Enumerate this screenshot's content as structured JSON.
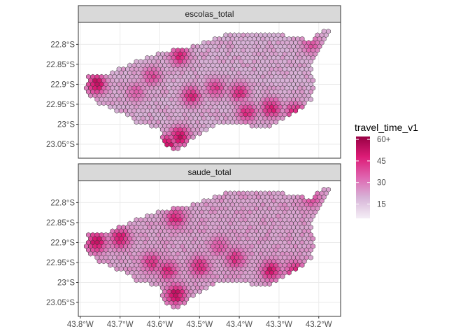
{
  "chart_data": {
    "type": "heatmap",
    "facets": [
      {
        "strip": "escolas_total",
        "region_outline_lonlat": [
          [
            -43.79,
            -22.92
          ],
          [
            -43.78,
            -22.88
          ],
          [
            -43.72,
            -22.87
          ],
          [
            -43.66,
            -22.84
          ],
          [
            -43.6,
            -22.82
          ],
          [
            -43.55,
            -22.81
          ],
          [
            -43.5,
            -22.8
          ],
          [
            -43.45,
            -22.78
          ],
          [
            -43.4,
            -22.77
          ],
          [
            -43.33,
            -22.77
          ],
          [
            -43.27,
            -22.78
          ],
          [
            -43.22,
            -22.79
          ],
          [
            -43.19,
            -22.76
          ],
          [
            -43.17,
            -22.77
          ],
          [
            -43.2,
            -22.82
          ],
          [
            -43.22,
            -22.85
          ],
          [
            -43.21,
            -22.9
          ],
          [
            -43.22,
            -22.94
          ],
          [
            -43.27,
            -22.98
          ],
          [
            -43.33,
            -23.01
          ],
          [
            -43.4,
            -23.0
          ],
          [
            -43.46,
            -23.0
          ],
          [
            -43.52,
            -23.04
          ],
          [
            -43.56,
            -23.07
          ],
          [
            -43.59,
            -23.05
          ],
          [
            -43.6,
            -23.01
          ],
          [
            -43.65,
            -23.0
          ],
          [
            -43.7,
            -22.97
          ],
          [
            -43.75,
            -22.95
          ]
        ],
        "hotspots": [
          {
            "lon": -43.76,
            "lat": -22.9,
            "value": 60
          },
          {
            "lon": -43.55,
            "lat": -23.03,
            "value": 58
          },
          {
            "lon": -43.58,
            "lat": -23.05,
            "value": 55
          },
          {
            "lon": -43.52,
            "lat": -22.93,
            "value": 50
          },
          {
            "lon": -43.32,
            "lat": -22.96,
            "value": 55
          },
          {
            "lon": -43.4,
            "lat": -22.92,
            "value": 50
          },
          {
            "lon": -43.55,
            "lat": -22.83,
            "value": 50
          },
          {
            "lon": -43.46,
            "lat": -22.91,
            "value": 45
          },
          {
            "lon": -43.26,
            "lat": -22.97,
            "value": 52
          },
          {
            "lon": -43.38,
            "lat": -22.97,
            "value": 50
          },
          {
            "lon": -43.22,
            "lat": -22.8,
            "value": 40
          },
          {
            "lon": -43.62,
            "lat": -22.88,
            "value": 42
          },
          {
            "lon": -43.66,
            "lat": -22.92,
            "value": 38
          }
        ],
        "base_value": 20
      },
      {
        "strip": "saude_total",
        "region_outline_lonlat": [
          [
            -43.79,
            -22.92
          ],
          [
            -43.78,
            -22.88
          ],
          [
            -43.72,
            -22.87
          ],
          [
            -43.66,
            -22.84
          ],
          [
            -43.6,
            -22.82
          ],
          [
            -43.55,
            -22.81
          ],
          [
            -43.5,
            -22.8
          ],
          [
            -43.45,
            -22.78
          ],
          [
            -43.4,
            -22.77
          ],
          [
            -43.33,
            -22.77
          ],
          [
            -43.27,
            -22.78
          ],
          [
            -43.22,
            -22.79
          ],
          [
            -43.19,
            -22.76
          ],
          [
            -43.17,
            -22.77
          ],
          [
            -43.2,
            -22.82
          ],
          [
            -43.22,
            -22.85
          ],
          [
            -43.21,
            -22.9
          ],
          [
            -43.22,
            -22.94
          ],
          [
            -43.27,
            -22.98
          ],
          [
            -43.33,
            -23.01
          ],
          [
            -43.4,
            -23.0
          ],
          [
            -43.46,
            -23.0
          ],
          [
            -43.52,
            -23.04
          ],
          [
            -43.56,
            -23.07
          ],
          [
            -43.59,
            -23.05
          ],
          [
            -43.6,
            -23.01
          ],
          [
            -43.65,
            -23.0
          ],
          [
            -43.7,
            -22.97
          ],
          [
            -43.75,
            -22.95
          ]
        ],
        "hotspots": [
          {
            "lon": -43.76,
            "lat": -22.9,
            "value": 60
          },
          {
            "lon": -43.7,
            "lat": -22.89,
            "value": 55
          },
          {
            "lon": -43.56,
            "lat": -23.03,
            "value": 60
          },
          {
            "lon": -43.58,
            "lat": -22.97,
            "value": 50
          },
          {
            "lon": -43.62,
            "lat": -22.95,
            "value": 48
          },
          {
            "lon": -43.5,
            "lat": -22.96,
            "value": 50
          },
          {
            "lon": -43.32,
            "lat": -22.97,
            "value": 55
          },
          {
            "lon": -43.41,
            "lat": -22.94,
            "value": 48
          },
          {
            "lon": -43.56,
            "lat": -22.84,
            "value": 50
          },
          {
            "lon": -43.26,
            "lat": -22.97,
            "value": 50
          },
          {
            "lon": -43.22,
            "lat": -22.79,
            "value": 42
          },
          {
            "lon": -43.45,
            "lat": -22.91,
            "value": 40
          }
        ],
        "base_value": 22
      }
    ],
    "x_axis": {
      "ticks": [
        -43.8,
        -43.7,
        -43.6,
        -43.5,
        -43.4,
        -43.3,
        -43.2
      ],
      "tick_labels": [
        "43.8°W",
        "43.7°W",
        "43.6°W",
        "43.5°W",
        "43.4°W",
        "43.3°W",
        "43.2°W"
      ],
      "range": [
        -43.805,
        -43.145
      ]
    },
    "y_axis": {
      "ticks": [
        -22.8,
        -22.85,
        -22.9,
        -22.95,
        -23.0,
        -23.05
      ],
      "tick_labels": [
        "22.8°S",
        "22.85°S",
        "22.9°S",
        "22.95°S",
        "23°S",
        "23.05°S"
      ],
      "range": [
        -23.085,
        -22.745
      ]
    },
    "legend": {
      "title": "travel_time_v1",
      "placement": "right",
      "breaks": [
        60,
        45,
        30,
        15
      ],
      "break_labels": [
        "60+",
        "45",
        "30",
        "15"
      ],
      "limits": [
        5,
        62
      ],
      "colors": [
        "#f4eef6",
        "#d7b5d8",
        "#df65b0",
        "#dd1c77",
        "#980043"
      ]
    },
    "grid": true,
    "cell_edge_color": "#333333"
  }
}
